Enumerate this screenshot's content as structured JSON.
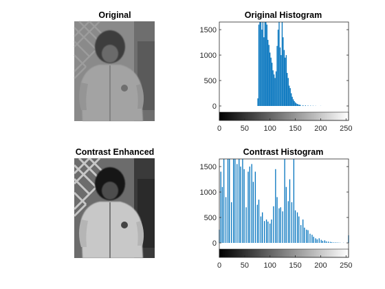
{
  "figure": {
    "panels": {
      "original": {
        "title": "Original"
      },
      "enhanced": {
        "title": "Contrast Enhanced"
      }
    }
  },
  "colors": {
    "bar": "#0072BD",
    "axis": "#262626",
    "background": "#ffffff"
  },
  "chart_data": [
    {
      "type": "bar",
      "title": "Original Histogram",
      "xlabel": "",
      "ylabel": "",
      "xlim": [
        0,
        255
      ],
      "ylim": [
        0,
        1650
      ],
      "xticks": [
        "0",
        "50",
        "100",
        "150",
        "200",
        "250"
      ],
      "yticks": [
        "0",
        "500",
        "1000",
        "1500"
      ],
      "grid": false,
      "colorbar": "grayscale",
      "x": [
        76,
        78,
        80,
        82,
        84,
        86,
        88,
        90,
        92,
        94,
        96,
        98,
        100,
        102,
        104,
        106,
        108,
        110,
        112,
        114,
        116,
        118,
        120,
        122,
        124,
        126,
        128,
        130,
        132,
        134,
        136,
        138,
        140,
        142,
        144,
        146,
        148,
        150,
        152,
        154,
        156,
        158,
        160,
        165,
        170,
        175,
        180,
        185,
        190,
        200
      ],
      "values": [
        150,
        1600,
        1650,
        1650,
        1500,
        1650,
        1350,
        1650,
        1650,
        1600,
        1300,
        1200,
        1050,
        950,
        850,
        700,
        620,
        550,
        680,
        1180,
        1500,
        1650,
        1150,
        1000,
        1650,
        1350,
        1100,
        950,
        1000,
        650,
        550,
        400,
        350,
        250,
        180,
        130,
        95,
        70,
        50,
        40,
        30,
        25,
        20,
        15,
        12,
        8,
        6,
        5,
        3,
        2
      ]
    },
    {
      "type": "bar",
      "title": "Contrast Histogram",
      "xlabel": "",
      "ylabel": "",
      "xlim": [
        0,
        255
      ],
      "ylim": [
        0,
        1650
      ],
      "xticks": [
        "0",
        "50",
        "100",
        "150",
        "200",
        "250"
      ],
      "yticks": [
        "0",
        "500",
        "1000",
        "1500"
      ],
      "grid": false,
      "colorbar": "grayscale",
      "x": [
        0,
        3,
        6,
        9,
        13,
        17,
        20,
        24,
        28,
        31,
        35,
        39,
        42,
        46,
        49,
        53,
        57,
        60,
        64,
        67,
        71,
        75,
        78,
        82,
        85,
        89,
        93,
        96,
        100,
        103,
        107,
        111,
        114,
        118,
        121,
        125,
        129,
        132,
        136,
        139,
        143,
        147,
        150,
        154,
        157,
        161,
        165,
        168,
        172,
        175,
        179,
        183,
        186,
        190,
        193,
        197,
        201,
        204,
        208,
        211,
        215,
        219,
        222,
        226,
        230,
        234,
        238,
        245,
        255
      ],
      "values": [
        260,
        1400,
        1100,
        1650,
        900,
        1650,
        1650,
        800,
        1650,
        1650,
        1550,
        1650,
        1500,
        1650,
        1450,
        700,
        1400,
        1500,
        1550,
        1200,
        1400,
        750,
        850,
        520,
        600,
        430,
        460,
        420,
        380,
        460,
        720,
        1450,
        900,
        680,
        700,
        620,
        1650,
        1100,
        820,
        1250,
        800,
        1650,
        640,
        600,
        520,
        350,
        460,
        300,
        260,
        250,
        180,
        160,
        120,
        90,
        70,
        90,
        60,
        40,
        50,
        30,
        25,
        20,
        15,
        10,
        10,
        8,
        5,
        3,
        150
      ]
    }
  ]
}
